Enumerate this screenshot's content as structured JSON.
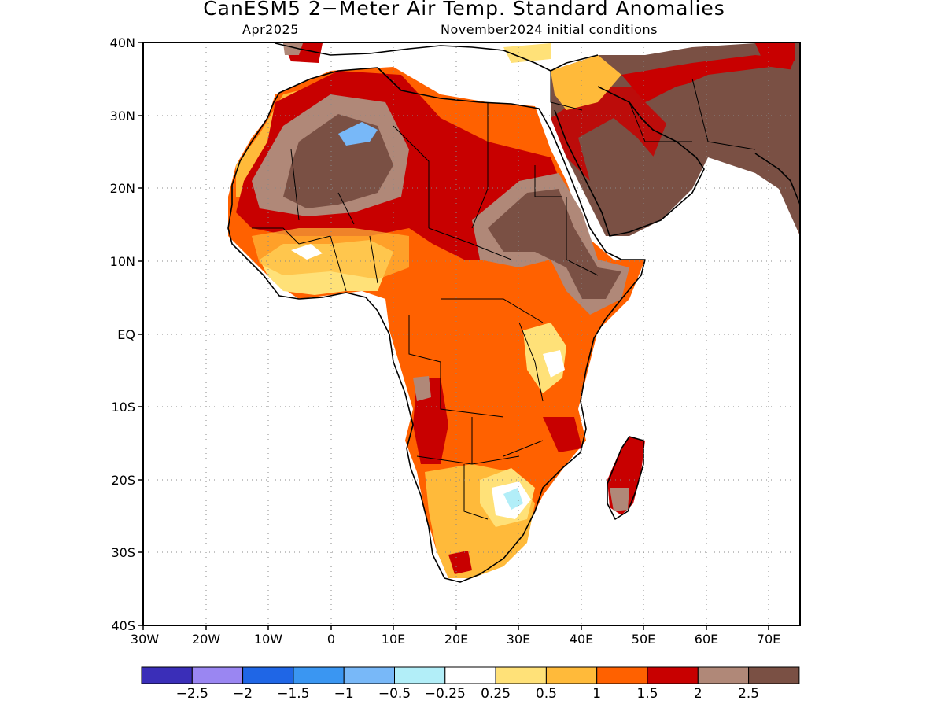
{
  "title": "CanESM5 2−Meter Air Temp. Standard Anomalies",
  "subtitle_left": "Apr2025",
  "subtitle_right": "November2024 initial conditions",
  "map": {
    "lon_range": [
      -30,
      75
    ],
    "lat_range": [
      -40,
      40
    ],
    "lat_ticks": [
      {
        "value": 40,
        "label": "40N"
      },
      {
        "value": 30,
        "label": "30N"
      },
      {
        "value": 20,
        "label": "20N"
      },
      {
        "value": 10,
        "label": "10N"
      },
      {
        "value": 0,
        "label": "EQ"
      },
      {
        "value": -10,
        "label": "10S"
      },
      {
        "value": -20,
        "label": "20S"
      },
      {
        "value": -30,
        "label": "30S"
      },
      {
        "value": -40,
        "label": "40S"
      }
    ],
    "lon_ticks": [
      {
        "value": -30,
        "label": "30W"
      },
      {
        "value": -20,
        "label": "20W"
      },
      {
        "value": -10,
        "label": "10W"
      },
      {
        "value": 0,
        "label": "0"
      },
      {
        "value": 10,
        "label": "10E"
      },
      {
        "value": 20,
        "label": "20E"
      },
      {
        "value": 30,
        "label": "30E"
      },
      {
        "value": 40,
        "label": "40E"
      },
      {
        "value": 50,
        "label": "50E"
      },
      {
        "value": 60,
        "label": "60E"
      },
      {
        "value": 70,
        "label": "70E"
      }
    ],
    "grid": "dotted"
  },
  "colorbar": {
    "colors": [
      "#3a2eb8",
      "#9a86f2",
      "#1f66e6",
      "#3a96f2",
      "#78b8f8",
      "#b2eef8",
      "#ffffff",
      "#ffe178",
      "#ffba3a",
      "#ff6100",
      "#c80000",
      "#b08878",
      "#7a5044"
    ],
    "labels": [
      "−2.5",
      "−2",
      "−1.5",
      "−1",
      "−0.5",
      "−0.25",
      "0.25",
      "0.5",
      "1",
      "1.5",
      "2",
      "2.5"
    ]
  }
}
